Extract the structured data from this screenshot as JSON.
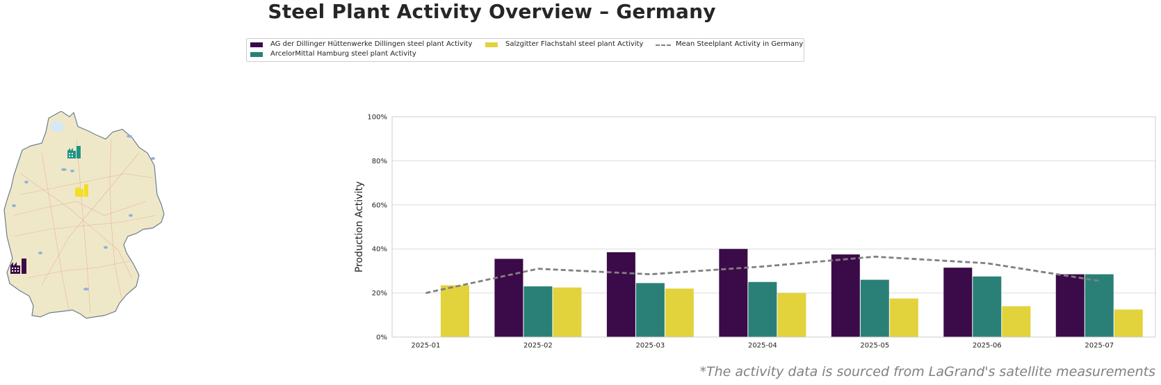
{
  "title": "Steel Plant Activity Overview – Germany",
  "footnote": "*The activity data is sourced from LaGrand's satellite measurements",
  "legend": {
    "dillingen": "AG der Dillinger Hüttenwerke Dillingen steel plant Activity",
    "hamburg": "ArcelorMittal Hamburg steel plant Activity",
    "salzgitter": "Salzgitter Flachstahl steel plant Activity",
    "mean": "Mean Steelplant Activity in Germany"
  },
  "colors": {
    "dillingen": "#3b0a48",
    "hamburg": "#2a8077",
    "salzgitter": "#e2d23b",
    "mean": "#808080",
    "grid": "#dcdcdc",
    "map_fill": "#efe8c8",
    "map_border": "#6b7d8c"
  },
  "map": {
    "icons": [
      "factory-icon-hamburg",
      "factory-icon-salzgitter",
      "factory-icon-dillingen"
    ]
  },
  "chart_data": {
    "type": "bar",
    "ylabel": "Production Activity",
    "xlabel": "",
    "ylim": [
      0,
      100
    ],
    "yticks": [
      "0%",
      "20%",
      "40%",
      "60%",
      "80%",
      "100%"
    ],
    "y_tick_values": [
      0,
      20,
      40,
      60,
      80,
      100
    ],
    "grid": true,
    "legend_position": "top-center",
    "categories": [
      "2025-01",
      "2025-02",
      "2025-03",
      "2025-04",
      "2025-05",
      "2025-06",
      "2025-07"
    ],
    "series": [
      {
        "name": "AG der Dillinger Hüttenwerke Dillingen steel plant Activity",
        "key": "dillingen",
        "values": [
          null,
          35.5,
          38.5,
          40,
          37.5,
          31.5,
          28.5
        ]
      },
      {
        "name": "ArcelorMittal Hamburg steel plant Activity",
        "key": "hamburg",
        "values": [
          null,
          23,
          24.5,
          25,
          26,
          27.5,
          28.5
        ]
      },
      {
        "name": "Salzgitter Flachstahl steel plant Activity",
        "key": "salzgitter",
        "values": [
          23.5,
          22.5,
          22,
          20,
          17.5,
          14,
          12.5
        ]
      }
    ],
    "line": {
      "name": "Mean Steelplant Activity in Germany",
      "style": "dashed",
      "values": [
        20,
        31,
        28.5,
        32,
        36.5,
        33.5,
        25.5
      ]
    }
  }
}
